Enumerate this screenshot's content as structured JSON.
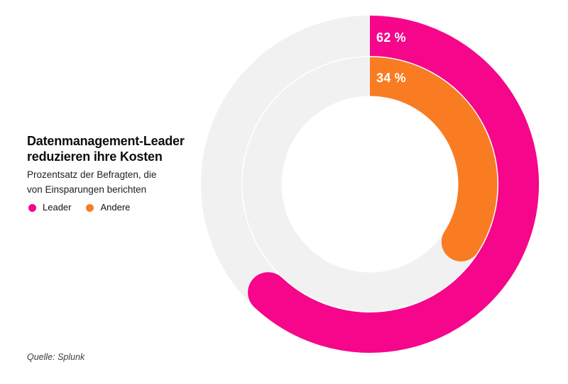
{
  "header": {
    "title_lines": [
      "Datenmanagement-Leader",
      "reduzieren ihre Kosten"
    ],
    "subtitle_lines": [
      "Prozentsatz der Befragten, die",
      "von Einsparungen berichten"
    ]
  },
  "legend": {
    "items": [
      {
        "label": "Leader",
        "color": "#F5068B"
      },
      {
        "label": "Andere",
        "color": "#F97C22"
      }
    ]
  },
  "source": "Quelle: Splunk",
  "chart_data": {
    "type": "pie",
    "variant": "concentric-donut",
    "title": "Datenmanagement-Leader reduzieren ihre Kosten",
    "subtitle": "Prozentsatz der Befragten, die von Einsparungen berichten",
    "unit": "%",
    "series": [
      {
        "name": "Leader",
        "value": 62,
        "label": "62 %",
        "color": "#F5068B",
        "ring": "outer"
      },
      {
        "name": "Andere",
        "value": 34,
        "label": "34 %",
        "color": "#F97C22",
        "ring": "inner"
      }
    ],
    "value_range": [
      0,
      100
    ],
    "track_color": "#F1F1F2",
    "start_angle_deg": 0,
    "direction": "clockwise",
    "end_cap": "round",
    "start_cap": "flat",
    "legend_position": "left",
    "source": "Quelle: Splunk"
  }
}
